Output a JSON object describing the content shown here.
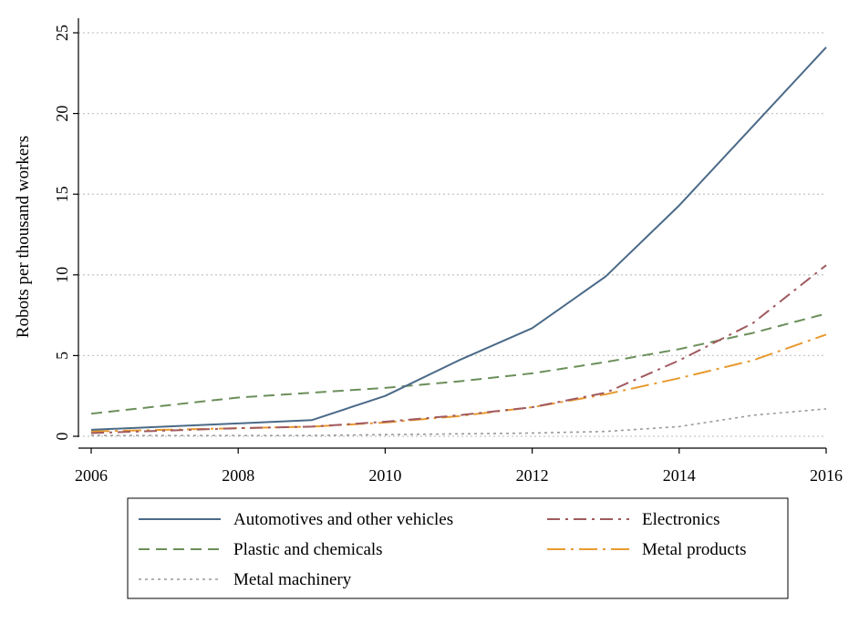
{
  "chart_data": {
    "type": "line",
    "title": "",
    "xlabel": "",
    "ylabel": "Robots per thousand workers",
    "xlim": [
      2006,
      2016
    ],
    "ylim": [
      0,
      25
    ],
    "x_ticks": [
      "2006",
      "2008",
      "2010",
      "2012",
      "2014",
      "2016"
    ],
    "y_ticks": [
      "0",
      "5",
      "10",
      "15",
      "20",
      "25"
    ],
    "grid": "horizontal-dotted",
    "legend_position": "bottom",
    "x": [
      2006,
      2007,
      2008,
      2009,
      2010,
      2011,
      2012,
      2013,
      2014,
      2015,
      2016
    ],
    "series": [
      {
        "name": "Automotives and other vehicles",
        "color": "#4a6a88",
        "dash": "solid",
        "values": [
          0.4,
          0.6,
          0.8,
          1.0,
          2.5,
          4.7,
          6.7,
          9.9,
          14.3,
          19.2,
          24.1
        ]
      },
      {
        "name": "Electronics",
        "color": "#a05a5f",
        "dash": "dashdot",
        "values": [
          0.2,
          0.35,
          0.5,
          0.6,
          0.9,
          1.3,
          1.8,
          2.7,
          4.7,
          7.0,
          10.6
        ]
      },
      {
        "name": "Plastic and chemicals",
        "color": "#6b8f5a",
        "dash": "dash",
        "values": [
          1.4,
          1.9,
          2.4,
          2.7,
          3.0,
          3.4,
          3.9,
          4.6,
          5.4,
          6.4,
          7.6
        ]
      },
      {
        "name": "Metal products",
        "color": "#e89a30",
        "dash": "longdashdot",
        "values": [
          0.3,
          0.4,
          0.5,
          0.6,
          0.85,
          1.25,
          1.8,
          2.6,
          3.6,
          4.7,
          6.3
        ]
      },
      {
        "name": "Metal machinery",
        "color": "#999999",
        "dash": "dot",
        "values": [
          0.05,
          0.05,
          0.05,
          0.05,
          0.1,
          0.15,
          0.2,
          0.3,
          0.6,
          1.3,
          1.7
        ]
      }
    ]
  }
}
